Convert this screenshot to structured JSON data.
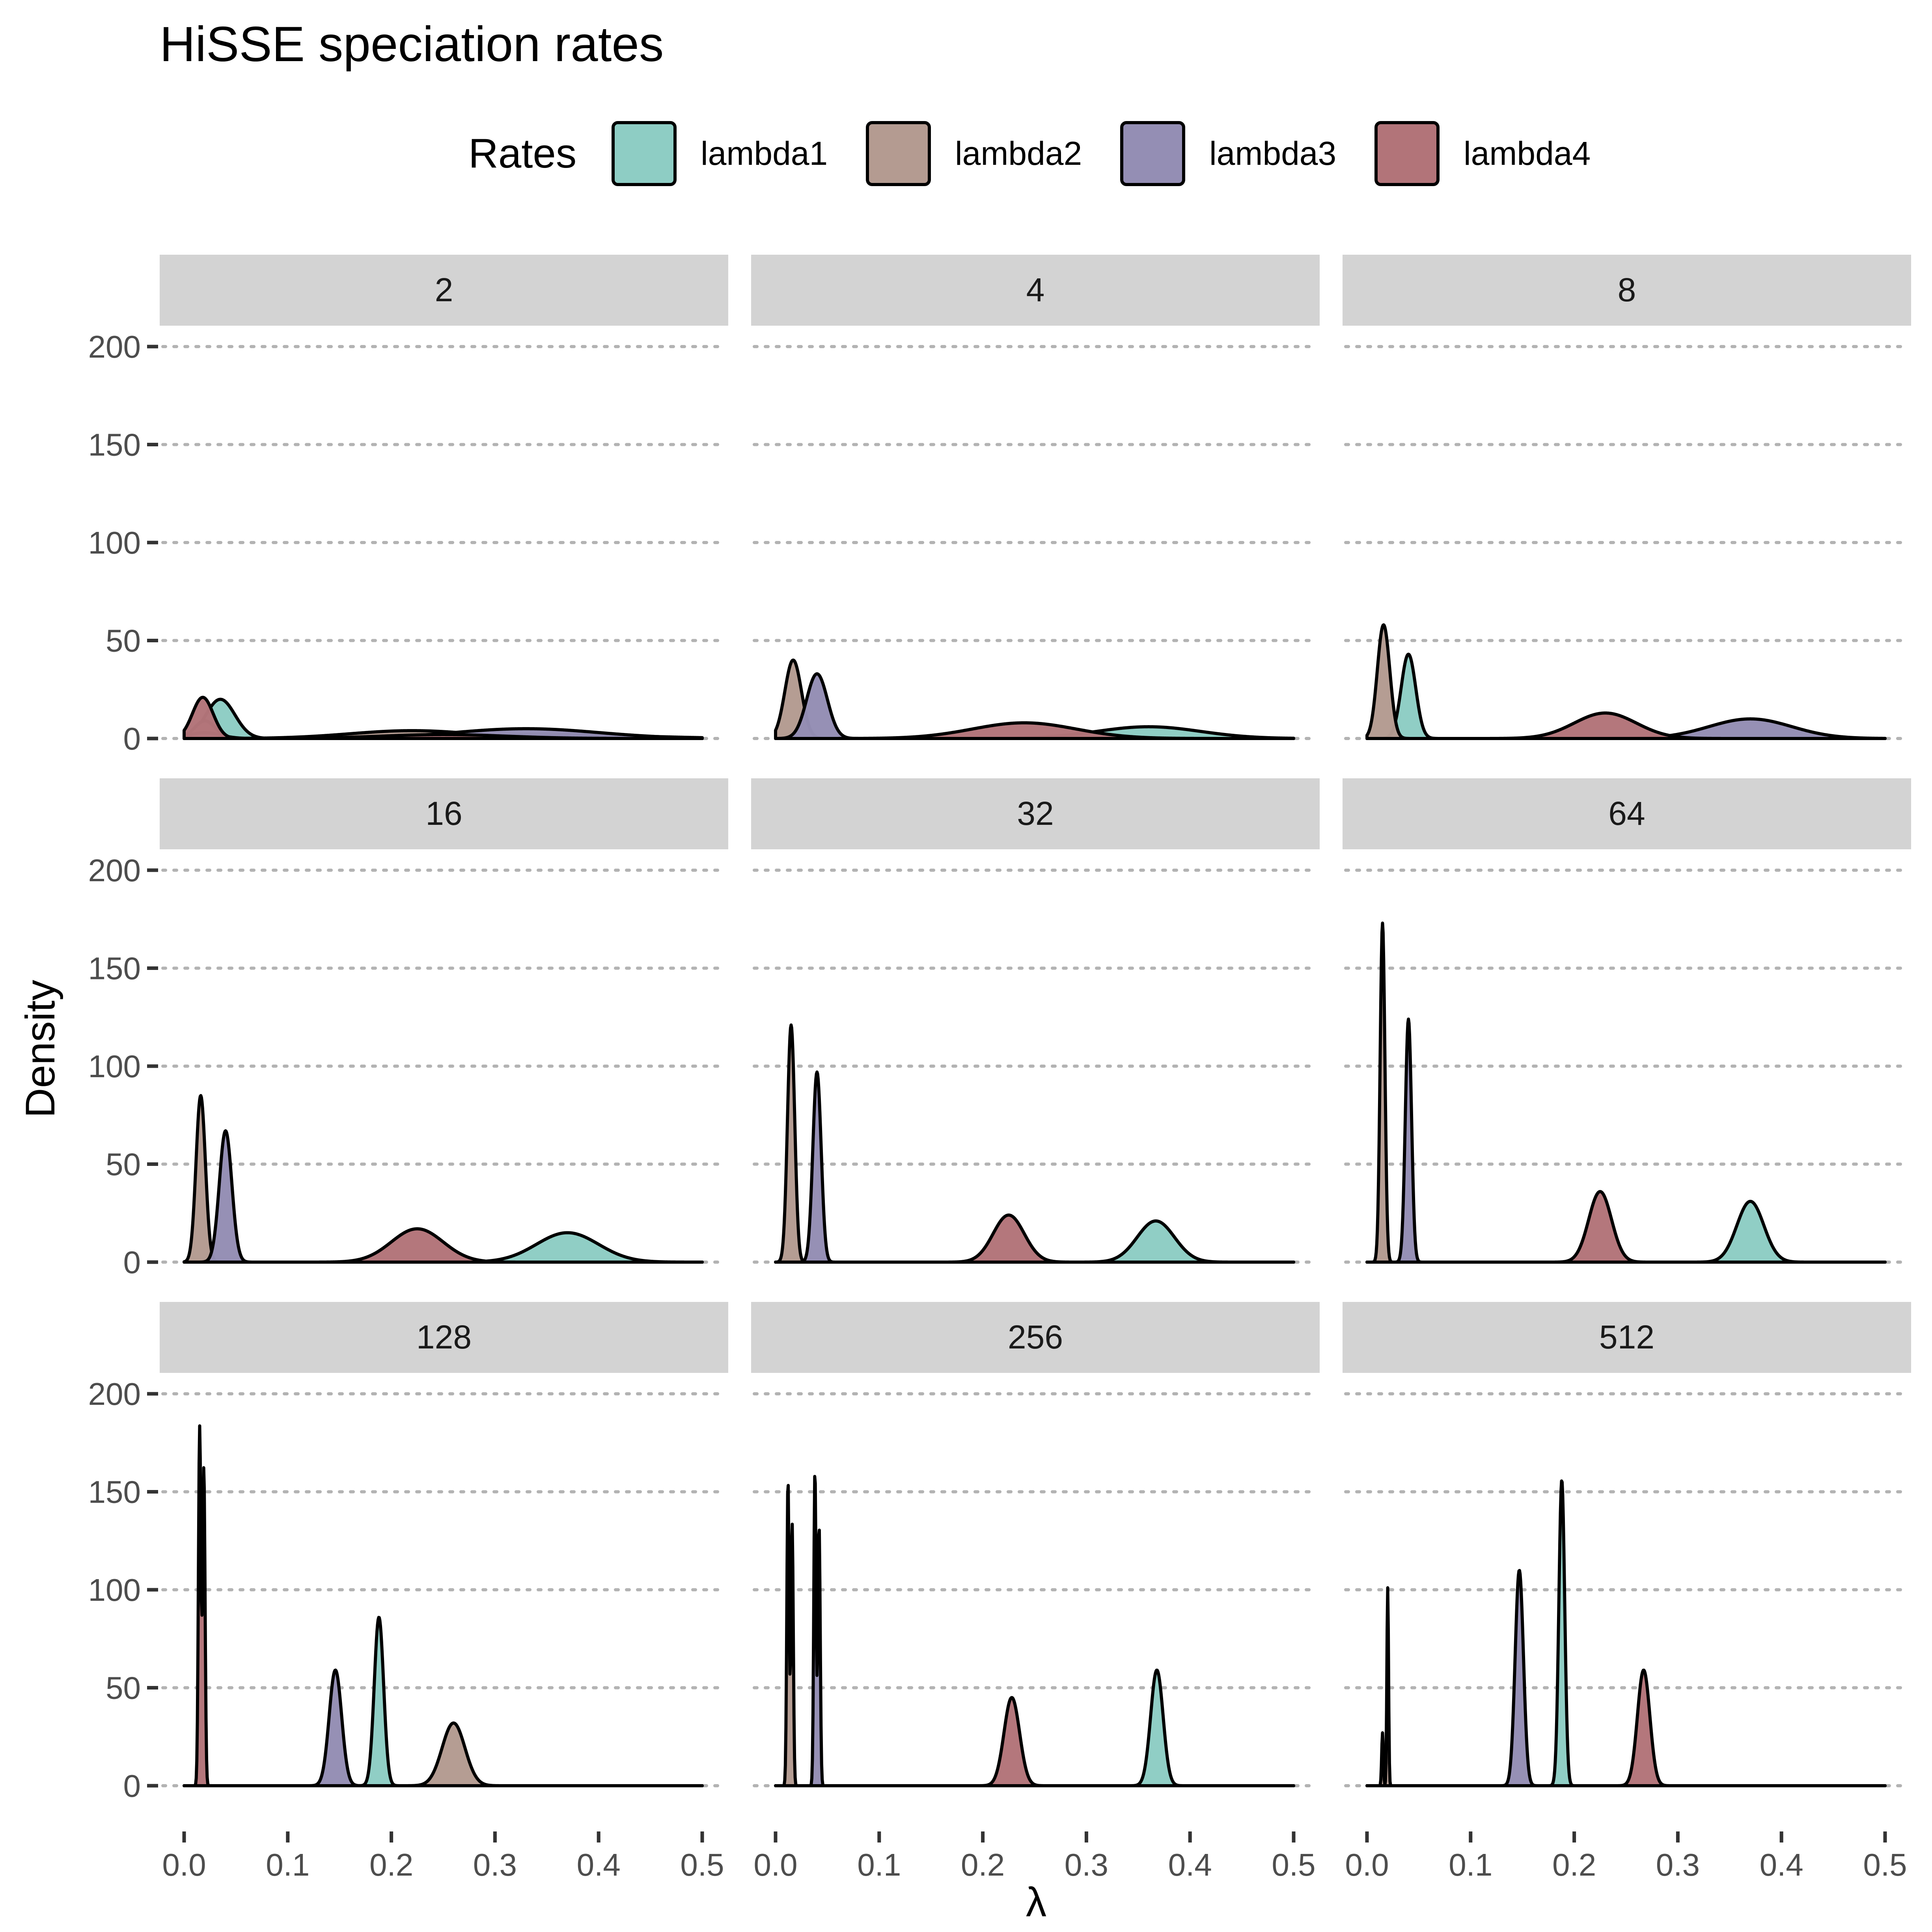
{
  "chart_data": {
    "type": "area",
    "title": "HiSSE speciation rates",
    "xlabel": "λ",
    "ylabel": "Density",
    "xlim": [
      0,
      0.5
    ],
    "ylim": [
      0,
      200
    ],
    "x_ticks": [
      "0.0",
      "0.1",
      "0.2",
      "0.3",
      "0.4",
      "0.5"
    ],
    "y_ticks": [
      "0",
      "50",
      "100",
      "150",
      "200"
    ],
    "grid": "horizontal-dotted",
    "legend": {
      "title": "Rates",
      "placement": "top",
      "entries": [
        {
          "name": "lambda1",
          "color": "#8ecdc4"
        },
        {
          "name": "lambda2",
          "color": "#b49b91"
        },
        {
          "name": "lambda3",
          "color": "#948eb4"
        },
        {
          "name": "lambda4",
          "color": "#b27479"
        }
      ]
    },
    "panels": [
      {
        "label": "2",
        "series": [
          {
            "name": "lambda1",
            "peaks": [
              [
                0.035,
                20,
                0.014
              ],
              [
                0.36,
                2,
                0.08
              ]
            ]
          },
          {
            "name": "lambda2",
            "peaks": [
              [
                0.02,
                9,
                0.01
              ],
              [
                0.22,
                4,
                0.06
              ]
            ]
          },
          {
            "name": "lambda3",
            "peaks": [
              [
                0.02,
                3,
                0.015
              ],
              [
                0.33,
                5,
                0.07
              ]
            ]
          },
          {
            "name": "lambda4",
            "peaks": [
              [
                0.018,
                21,
                0.01
              ],
              [
                0.25,
                2,
                0.06
              ]
            ]
          }
        ]
      },
      {
        "label": "4",
        "series": [
          {
            "name": "lambda1",
            "peaks": [
              [
                0.36,
                6,
                0.05
              ]
            ]
          },
          {
            "name": "lambda2",
            "peaks": [
              [
                0.017,
                40,
                0.008
              ]
            ]
          },
          {
            "name": "lambda3",
            "peaks": [
              [
                0.04,
                33,
                0.01
              ]
            ]
          },
          {
            "name": "lambda4",
            "peaks": [
              [
                0.24,
                8,
                0.05
              ]
            ]
          }
        ]
      },
      {
        "label": "8",
        "series": [
          {
            "name": "lambda1",
            "peaks": [
              [
                0.04,
                43,
                0.007
              ]
            ]
          },
          {
            "name": "lambda2",
            "peaks": [
              [
                0.016,
                58,
                0.006
              ]
            ]
          },
          {
            "name": "lambda3",
            "peaks": [
              [
                0.37,
                10,
                0.04
              ]
            ]
          },
          {
            "name": "lambda4",
            "peaks": [
              [
                0.23,
                13,
                0.03
              ]
            ]
          }
        ]
      },
      {
        "label": "16",
        "series": [
          {
            "name": "lambda1",
            "peaks": [
              [
                0.37,
                15,
                0.03
              ]
            ]
          },
          {
            "name": "lambda2",
            "peaks": [
              [
                0.016,
                85,
                0.0045
              ]
            ]
          },
          {
            "name": "lambda3",
            "peaks": [
              [
                0.04,
                67,
                0.006
              ]
            ]
          },
          {
            "name": "lambda4",
            "peaks": [
              [
                0.225,
                17,
                0.025
              ]
            ]
          }
        ]
      },
      {
        "label": "32",
        "series": [
          {
            "name": "lambda1",
            "peaks": [
              [
                0.367,
                21,
                0.018
              ]
            ]
          },
          {
            "name": "lambda2",
            "peaks": [
              [
                0.015,
                121,
                0.0035
              ]
            ]
          },
          {
            "name": "lambda3",
            "peaks": [
              [
                0.04,
                97,
                0.004
              ]
            ]
          },
          {
            "name": "lambda4",
            "peaks": [
              [
                0.225,
                24,
                0.015
              ]
            ]
          }
        ]
      },
      {
        "label": "64",
        "series": [
          {
            "name": "lambda1",
            "peaks": [
              [
                0.37,
                31,
                0.013
              ]
            ]
          },
          {
            "name": "lambda2",
            "peaks": [
              [
                0.015,
                173,
                0.0023
              ]
            ]
          },
          {
            "name": "lambda3",
            "peaks": [
              [
                0.04,
                124,
                0.003
              ]
            ]
          },
          {
            "name": "lambda4",
            "peaks": [
              [
                0.225,
                36,
                0.011
              ]
            ]
          }
        ]
      },
      {
        "label": "128",
        "series": [
          {
            "name": "lambda1",
            "peaks": [
              [
                0.188,
                86,
                0.0045
              ]
            ]
          },
          {
            "name": "lambda2",
            "peaks": [
              [
                0.26,
                32,
                0.011
              ]
            ]
          },
          {
            "name": "lambda3",
            "peaks": [
              [
                0.146,
                59,
                0.006
              ]
            ]
          },
          {
            "name": "lambda4",
            "peaks": [
              [
                0.015,
                183,
                0.0012
              ],
              [
                0.019,
                162,
                0.0012
              ]
            ]
          }
        ]
      },
      {
        "label": "256",
        "series": [
          {
            "name": "lambda1",
            "peaks": [
              [
                0.368,
                59,
                0.006
              ]
            ]
          },
          {
            "name": "lambda2",
            "peaks": [
              [
                0.012,
                156,
                0.0011
              ],
              [
                0.016,
                134,
                0.0011
              ]
            ]
          },
          {
            "name": "lambda3",
            "peaks": [
              [
                0.038,
                161,
                0.0011
              ],
              [
                0.042,
                133,
                0.0011
              ]
            ]
          },
          {
            "name": "lambda4",
            "peaks": [
              [
                0.228,
                45,
                0.0075
              ]
            ]
          }
        ]
      },
      {
        "label": "512",
        "series": [
          {
            "name": "lambda1",
            "peaks": [
              [
                0.188,
                156,
                0.0028
              ]
            ]
          },
          {
            "name": "lambda2",
            "peaks": [
              [
                0.015,
                27,
                0.0008
              ]
            ]
          },
          {
            "name": "lambda3",
            "peaks": [
              [
                0.147,
                110,
                0.004
              ]
            ]
          },
          {
            "name": "lambda4",
            "peaks": [
              [
                0.267,
                59,
                0.006
              ]
            ]
          },
          {
            "name": "lambda2",
            "peaks": [
              [
                0.02,
                101,
                0.0008
              ]
            ]
          }
        ]
      }
    ]
  }
}
